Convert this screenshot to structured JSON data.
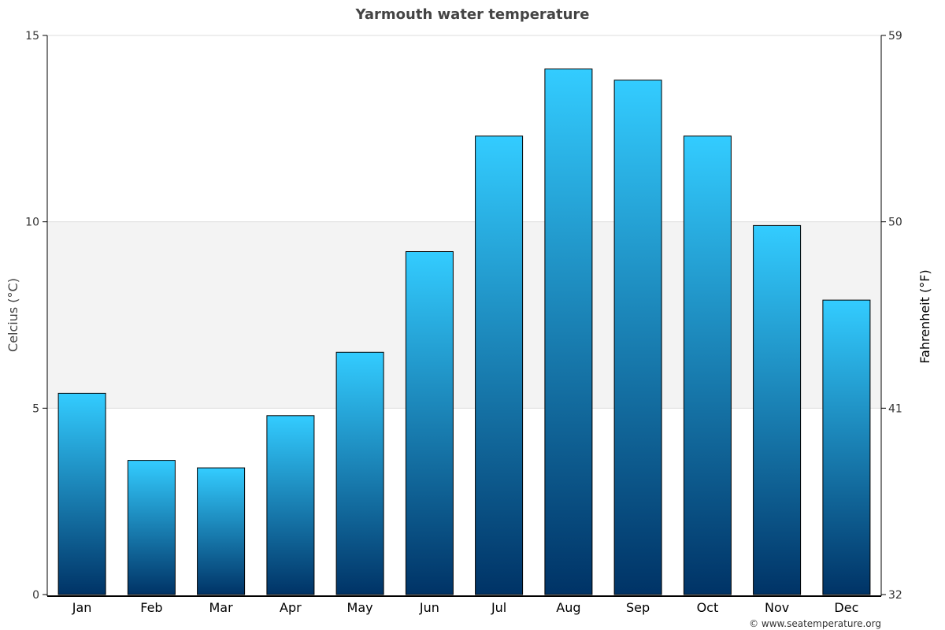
{
  "chart_data": {
    "type": "bar",
    "title": "Yarmouth water temperature",
    "ylabel": "Celcius (°C)",
    "ylabel_right": "Fahrenheit (°F)",
    "categories": [
      "Jan",
      "Feb",
      "Mar",
      "Apr",
      "May",
      "Jun",
      "Jul",
      "Aug",
      "Sep",
      "Oct",
      "Nov",
      "Dec"
    ],
    "values": [
      5.4,
      3.6,
      3.4,
      4.8,
      6.5,
      9.2,
      12.3,
      14.1,
      13.8,
      12.3,
      9.9,
      7.9
    ],
    "ylim": [
      0,
      15
    ],
    "yticks": [
      "0",
      "5",
      "10",
      "15"
    ],
    "yticks_right": [
      "32",
      "41",
      "50",
      "59"
    ],
    "highlight_band": [
      5,
      10
    ],
    "credit": "© www.seatemperature.org",
    "colors": {
      "bar_top": "#33ccff",
      "bar_bottom": "#003366",
      "band": "#f3f3f3",
      "grid": "#dddddd"
    }
  }
}
